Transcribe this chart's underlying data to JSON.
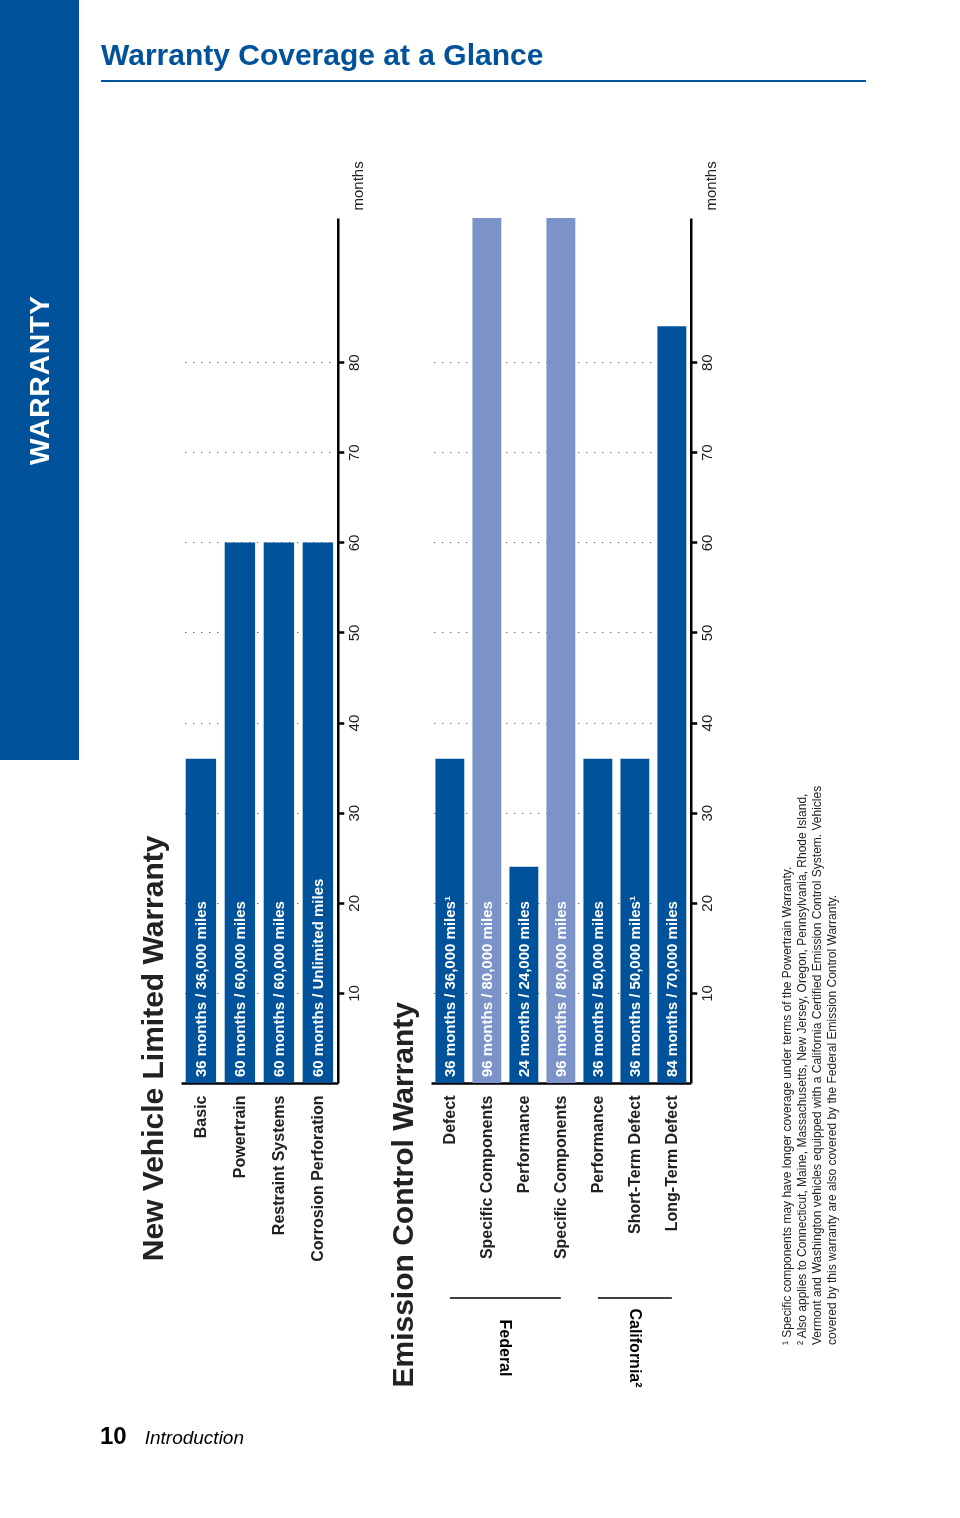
{
  "chart_data": [
    {
      "type": "bar",
      "title": "New Vehicle Limited Warranty",
      "ylabel": "months",
      "categories": [
        "Basic",
        "Powertrain",
        "Restraint Systems",
        "Corrosion Perforation"
      ],
      "values": [
        36,
        60,
        60,
        60
      ],
      "color": "#00529b",
      "value_labels": [
        "36 months  /  36,000 miles",
        "60 months  /  60,000 miles",
        "60 months  /  60,000 miles",
        "60 months  /  Unlimited miles"
      ],
      "ylim": [
        0,
        96
      ],
      "yticks": [
        10,
        20,
        30,
        40,
        50,
        60,
        70,
        80
      ],
      "grid": "y",
      "annotations": [
        "Warranty Coverage at a Glance",
        "WARRANTY",
        "10",
        "Introduction"
      ]
    },
    {
      "type": "bar",
      "title": "Emission Control Warranty",
      "ylabel": "months",
      "categories": [
        "Defect",
        "Specific Components",
        "Performance",
        "Specific Components",
        "Performance",
        "Short-Term Defect",
        "Long-Term Defect"
      ],
      "values": [
        36,
        96,
        24,
        96,
        36,
        36,
        84
      ],
      "colors": [
        "#00529b",
        "#7b93c8",
        "#00529b",
        "#7b93c8",
        "#00529b",
        "#00529b",
        "#00529b"
      ],
      "value_labels": [
        "36 months  /  36,000 miles¹",
        "96 months  /  80,000 miles",
        "24 months  /  24,000 miles",
        "96 months  /  80,000 miles",
        "36 months  /  50,000 miles",
        "36 months  /  50,000 miles¹",
        "84 months  /  70,000 miles"
      ],
      "ylim": [
        0,
        96
      ],
      "yticks": [
        10,
        20,
        30,
        40,
        50,
        60,
        70,
        80
      ],
      "grid": "y",
      "annotations": [
        "Federal",
        "California²",
        "¹ Specific components may have longer coverage under terms of the Powertrain Warranty.",
        "² Also applies to Connecticut, Maine, Massachusetts, New Jersey, Oregon, Pennsylvania, Rhode Island, Vermont and Washington vehicles equipped with a California Certified Emission Control System. Vehicles covered by this warranty are also covered by the Federal Emission Control Warranty."
      ]
    }
  ]
}
